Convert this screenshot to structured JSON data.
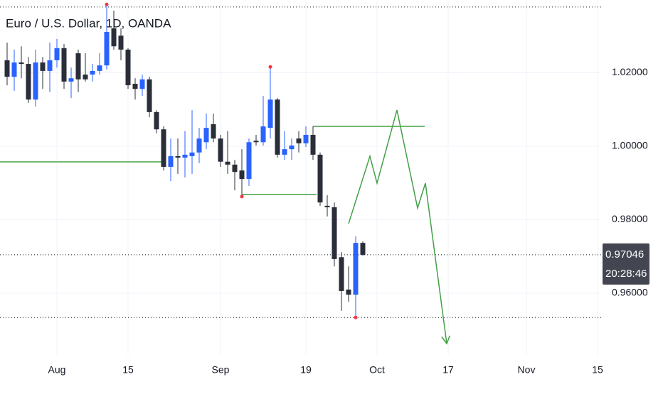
{
  "chart_data": {
    "type": "candlestick",
    "title": "Euro / U.S. Dollar, 1D, OANDA",
    "up_color": "#2962ff",
    "down_color": "#2a2e39",
    "open": [
      1.0234,
      1.0189,
      1.0228,
      1.0224,
      1.0127,
      1.0228,
      1.0205,
      1.0234,
      1.0267,
      1.0176,
      1.0253,
      1.0195,
      1.0195,
      1.0205,
      1.022,
      1.0321,
      1.0301,
      1.0263,
      1.017,
      1.0156,
      1.0182,
      1.0093,
      1.0046,
      0.9944,
      0.9973,
      0.9969,
      0.9973,
      0.9983,
      1.0011,
      1.006,
      1.0021,
      0.9958,
      0.995,
      0.9934,
      0.9911,
      1.0015,
      1.0011,
      1.005,
      1.0127,
      0.9977,
      0.9992,
      1.0021,
      1.0008,
      1.0031,
      0.9977,
      0.9838,
      0.9834,
      0.9698,
      0.961,
      0.9596,
      0.9737
    ],
    "high": [
      1.0282,
      1.0263,
      1.0272,
      1.0243,
      1.0263,
      1.0243,
      1.0282,
      1.0292,
      1.0278,
      1.0214,
      1.0263,
      1.0253,
      1.0224,
      1.0253,
      1.0386,
      1.0369,
      1.0321,
      1.0267,
      1.0185,
      1.0195,
      1.0189,
      1.0098,
      1.0054,
      1.0021,
      1.0021,
      1.0041,
      1.0098,
      1.005,
      1.0089,
      1.0089,
      1.0031,
      1.0041,
      0.9963,
      0.9992,
      1.0021,
      1.0031,
      1.0137,
      1.0216,
      1.0131,
      1.0041,
      1.0021,
      1.0041,
      1.0054,
      1.0054,
      0.9983,
      0.9867,
      0.9847,
      0.9712,
      0.9673,
      0.9755,
      0.9741
    ],
    "low": [
      1.0166,
      1.0151,
      1.0185,
      1.0118,
      1.0108,
      1.0156,
      1.0147,
      1.0214,
      1.0156,
      1.0131,
      1.0147,
      1.0176,
      1.0176,
      1.0195,
      1.0209,
      1.0263,
      1.0234,
      1.0156,
      1.0127,
      1.0137,
      1.0079,
      1.0035,
      0.9934,
      0.9905,
      0.9925,
      0.9915,
      0.9925,
      0.9954,
      0.9992,
      1.0011,
      0.9944,
      0.9925,
      0.988,
      0.9863,
      0.9892,
      1.0002,
      1.0002,
      1.0021,
      0.9969,
      0.9963,
      0.9963,
      0.9983,
      0.9998,
      0.9963,
      0.9838,
      0.9809,
      0.9673,
      0.9552,
      0.9577,
      0.9534,
      0.9702
    ],
    "close": [
      1.0189,
      1.0228,
      1.0224,
      1.0127,
      1.0228,
      1.0205,
      1.0234,
      1.0267,
      1.0176,
      1.0185,
      1.0182,
      1.0182,
      1.0205,
      1.022,
      1.0311,
      1.0272,
      1.0263,
      1.0166,
      1.0156,
      1.0182,
      1.0093,
      1.0046,
      0.9944,
      0.9973,
      0.9969,
      0.9977,
      0.9983,
      1.0021,
      1.005,
      1.0021,
      0.9958,
      0.995,
      0.993,
      0.9911,
      1.0011,
      1.0011,
      1.0054,
      1.0127,
      0.9977,
      0.9992,
      1.0002,
      1.0008,
      1.0031,
      0.9977,
      0.9847,
      0.9834,
      0.9693,
      0.9606,
      0.9596,
      0.9737,
      0.97046
    ],
    "xlim": [
      -1,
      83.5
    ],
    "xticks": [
      {
        "value": 7,
        "label": "Aug"
      },
      {
        "value": 17,
        "label": "15"
      },
      {
        "value": 30,
        "label": "Sep"
      },
      {
        "value": 42,
        "label": "19"
      },
      {
        "value": 52,
        "label": "Oct"
      },
      {
        "value": 62,
        "label": "17"
      },
      {
        "value": 73,
        "label": "Nov"
      },
      {
        "value": 83,
        "label": "15"
      }
    ],
    "ylim": [
      0.9432,
      1.0398
    ],
    "yticks": [
      {
        "value": 0.96,
        "label": "0.96000"
      },
      {
        "value": 0.98,
        "label": "0.98000"
      },
      {
        "value": 1.0,
        "label": "1.00000"
      },
      {
        "value": 1.02,
        "label": "1.02000"
      }
    ],
    "grid": true,
    "last_price": 0.97046,
    "countdown": "20:28:46",
    "price_lines": [
      1.0379,
      0.9534
    ],
    "pivots": [
      {
        "index": 14,
        "price": 1.0386
      },
      {
        "index": 37,
        "price": 1.0216
      },
      {
        "index": 33,
        "price": 0.9863
      },
      {
        "index": 49,
        "price": 0.9534
      }
    ],
    "line_color": "#43a047",
    "levels": [
      {
        "x": [
          -1,
          22
        ],
        "price": 0.99575
      },
      {
        "x": [
          33,
          43.5
        ],
        "price": 0.98686
      },
      {
        "x": [
          43,
          58.7
        ],
        "price": 1.0054
      }
    ],
    "projection": {
      "x": [
        48,
        51,
        52,
        54.8,
        57.7,
        58.8,
        61.8
      ],
      "y": [
        0.97893,
        0.99729,
        0.98995,
        1.00986,
        0.98319,
        0.98995,
        0.94628
      ]
    }
  }
}
